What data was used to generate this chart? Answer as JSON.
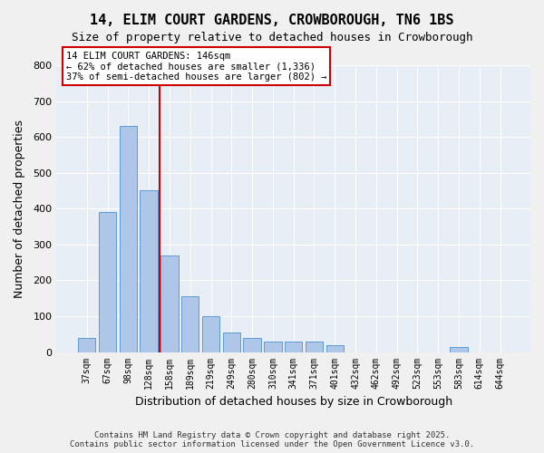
{
  "title": "14, ELIM COURT GARDENS, CROWBOROUGH, TN6 1BS",
  "subtitle": "Size of property relative to detached houses in Crowborough",
  "xlabel": "Distribution of detached houses by size in Crowborough",
  "ylabel": "Number of detached properties",
  "categories": [
    "37sqm",
    "67sqm",
    "98sqm",
    "128sqm",
    "158sqm",
    "189sqm",
    "219sqm",
    "249sqm",
    "280sqm",
    "310sqm",
    "341sqm",
    "371sqm",
    "401sqm",
    "432sqm",
    "462sqm",
    "492sqm",
    "523sqm",
    "553sqm",
    "583sqm",
    "614sqm",
    "644sqm"
  ],
  "values": [
    40,
    390,
    630,
    450,
    270,
    155,
    100,
    55,
    40,
    30,
    30,
    30,
    20,
    0,
    0,
    0,
    0,
    0,
    15,
    0,
    0
  ],
  "bar_color": "#aec6e8",
  "bar_edge_color": "#5b9bd5",
  "bg_color": "#e8eef5",
  "grid_color": "#ffffff",
  "vline_x": 3.5,
  "vline_color": "#cc0000",
  "annotation_text": "14 ELIM COURT GARDENS: 146sqm\n← 62% of detached houses are smaller (1,336)\n37% of semi-detached houses are larger (802) →",
  "annotation_box_color": "#cc0000",
  "footer": "Contains HM Land Registry data © Crown copyright and database right 2025.\nContains public sector information licensed under the Open Government Licence v3.0.",
  "ylim": [
    0,
    800
  ],
  "yticks": [
    0,
    100,
    200,
    300,
    400,
    500,
    600,
    700,
    800
  ]
}
